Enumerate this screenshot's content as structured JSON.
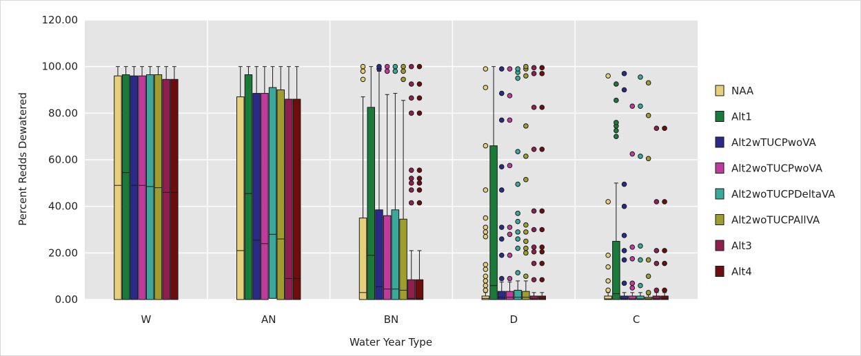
{
  "chart_data": {
    "type": "boxplot",
    "xlabel": "Water Year Type",
    "ylabel": "Percent Redds Dewatered",
    "ylim": [
      0,
      120
    ],
    "yticks": [
      "0.00",
      "20.00",
      "40.00",
      "60.00",
      "80.00",
      "100.00",
      "120.00"
    ],
    "ytick_values": [
      0,
      20,
      40,
      60,
      80,
      100,
      120
    ],
    "categories": [
      "W",
      "AN",
      "BN",
      "D",
      "C"
    ],
    "background": "#e5e5e5",
    "grid": true,
    "legend_position": "right",
    "series": [
      {
        "name": "NAA",
        "color": "#e5cf7a",
        "boxes": [
          {
            "q1": 0,
            "median": 49,
            "q3": 96,
            "whisker_low": 0,
            "whisker_high": 100,
            "outliers": []
          },
          {
            "q1": 0,
            "median": 21,
            "q3": 87,
            "whisker_low": 0,
            "whisker_high": 100,
            "outliers": []
          },
          {
            "q1": 0,
            "median": 3,
            "q3": 35,
            "whisker_low": 0,
            "whisker_high": 87,
            "outliers": [
              94.5,
              98,
              100
            ]
          },
          {
            "q1": 0,
            "median": 0.5,
            "q3": 1.5,
            "whisker_low": 0,
            "whisker_high": 3,
            "outliers": [
              4,
              6,
              8,
              10,
              13,
              15,
              27,
              29,
              31,
              35,
              47,
              66,
              91,
              99
            ]
          },
          {
            "q1": 0,
            "median": 0.3,
            "q3": 1.5,
            "whisker_low": 0,
            "whisker_high": 3,
            "outliers": [
              4,
              8,
              14,
              19,
              42,
              96
            ]
          }
        ]
      },
      {
        "name": "Alt1",
        "color": "#1a7a3a",
        "boxes": [
          {
            "q1": 0,
            "median": 54.5,
            "q3": 96.5,
            "whisker_low": 0,
            "whisker_high": 100,
            "outliers": []
          },
          {
            "q1": 0,
            "median": 45.5,
            "q3": 96.5,
            "whisker_low": 0,
            "whisker_high": 100,
            "outliers": []
          },
          {
            "q1": 0,
            "median": 19,
            "q3": 82.5,
            "whisker_low": 0,
            "whisker_high": 100,
            "outliers": []
          },
          {
            "q1": 0,
            "median": 6,
            "q3": 66,
            "whisker_low": 0,
            "whisker_high": 100,
            "outliers": []
          },
          {
            "q1": 0,
            "median": 2.5,
            "q3": 25,
            "whisker_low": 0,
            "whisker_high": 50,
            "outliers": [
              70,
              72.5,
              74.5,
              76,
              85.5,
              92.5
            ]
          }
        ]
      },
      {
        "name": "Alt2wTUCPwoVA",
        "color": "#2a2a8a",
        "boxes": [
          {
            "q1": 0,
            "median": 49,
            "q3": 96,
            "whisker_low": 0,
            "whisker_high": 100,
            "outliers": []
          },
          {
            "q1": 0,
            "median": 25.5,
            "q3": 88.5,
            "whisker_low": 0,
            "whisker_high": 100,
            "outliers": []
          },
          {
            "q1": 0,
            "median": 5.5,
            "q3": 38.5,
            "whisker_low": 0,
            "whisker_high": 98,
            "outliers": [
              99,
              100
            ]
          },
          {
            "q1": 0,
            "median": 1,
            "q3": 3.5,
            "whisker_low": 0,
            "whisker_high": 7.5,
            "outliers": [
              9,
              19,
              26,
              31,
              47,
              57,
              77,
              88.5,
              99
            ]
          },
          {
            "q1": 0,
            "median": 0.3,
            "q3": 1.5,
            "whisker_low": 0,
            "whisker_high": 3,
            "outliers": [
              7,
              17,
              21,
              27.5,
              40,
              49.5,
              90,
              97
            ]
          }
        ]
      },
      {
        "name": "Alt2woTUCPwoVA",
        "color": "#c03b9e",
        "boxes": [
          {
            "q1": 0,
            "median": 49,
            "q3": 96,
            "whisker_low": 0,
            "whisker_high": 100,
            "outliers": []
          },
          {
            "q1": 0,
            "median": 24,
            "q3": 88.5,
            "whisker_low": 0,
            "whisker_high": 100,
            "outliers": []
          },
          {
            "q1": 0,
            "median": 4.5,
            "q3": 36,
            "whisker_low": 0,
            "whisker_high": 88,
            "outliers": [
              98,
              100
            ]
          },
          {
            "q1": 0,
            "median": 1,
            "q3": 3.5,
            "whisker_low": 0,
            "whisker_high": 7.5,
            "outliers": [
              9,
              19,
              28,
              31,
              57.5,
              77,
              87.5,
              99
            ]
          },
          {
            "q1": 0,
            "median": 0.3,
            "q3": 1.5,
            "whisker_low": 0,
            "whisker_high": 3,
            "outliers": [
              5,
              7,
              17.5,
              22.5,
              62.5,
              83
            ]
          }
        ]
      },
      {
        "name": "Alt2woTUCPDeltaVA",
        "color": "#3aa89a",
        "boxes": [
          {
            "q1": 0,
            "median": 48.5,
            "q3": 96.5,
            "whisker_low": 0,
            "whisker_high": 100,
            "outliers": []
          },
          {
            "q1": 0.5,
            "median": 28,
            "q3": 91,
            "whisker_low": 0,
            "whisker_high": 100,
            "outliers": []
          },
          {
            "q1": 0,
            "median": 4.5,
            "q3": 38.5,
            "whisker_low": 0,
            "whisker_high": 88.5,
            "outliers": [
              98,
              100
            ]
          },
          {
            "q1": 0,
            "median": 1,
            "q3": 4,
            "whisker_low": 0,
            "whisker_high": 8,
            "outliers": [
              11.5,
              22,
              26,
              29,
              33.5,
              37,
              49.5,
              63.5,
              95,
              97.5,
              99
            ]
          },
          {
            "q1": 0,
            "median": 0.3,
            "q3": 1.5,
            "whisker_low": 0,
            "whisker_high": 3,
            "outliers": [
              6,
              17,
              23,
              61.5,
              83,
              95.5
            ]
          }
        ]
      },
      {
        "name": "Alt2woTUCPAllVA",
        "color": "#9e9e2e",
        "boxes": [
          {
            "q1": 0,
            "median": 48,
            "q3": 96.5,
            "whisker_low": 0,
            "whisker_high": 100,
            "outliers": []
          },
          {
            "q1": 0,
            "median": 26,
            "q3": 90,
            "whisker_low": 0,
            "whisker_high": 100,
            "outliers": []
          },
          {
            "q1": 0,
            "median": 4,
            "q3": 34.5,
            "whisker_low": 0,
            "whisker_high": 85.5,
            "outliers": [
              94.5,
              98,
              100
            ]
          },
          {
            "q1": 0,
            "median": 1,
            "q3": 3.5,
            "whisker_low": 0,
            "whisker_high": 8,
            "outliers": [
              10,
              20,
              22,
              25,
              29,
              32,
              51.5,
              61.5,
              74.5,
              96,
              99,
              100
            ]
          },
          {
            "q1": 0,
            "median": 0.3,
            "q3": 1,
            "whisker_low": 0,
            "whisker_high": 2,
            "outliers": [
              3,
              10,
              17,
              60.5,
              79,
              93
            ]
          }
        ]
      },
      {
        "name": "Alt3",
        "color": "#8e1f4e",
        "boxes": [
          {
            "q1": 0,
            "median": 46,
            "q3": 94.5,
            "whisker_low": 0,
            "whisker_high": 100,
            "outliers": []
          },
          {
            "q1": 0,
            "median": 9,
            "q3": 86,
            "whisker_low": 0,
            "whisker_high": 100,
            "outliers": []
          },
          {
            "q1": 0,
            "median": 0.5,
            "q3": 8.5,
            "whisker_low": 0,
            "whisker_high": 21,
            "outliers": [
              41.5,
              47,
              50,
              52,
              55.5,
              80,
              86.5,
              92.5,
              100
            ]
          },
          {
            "q1": 0,
            "median": 0.3,
            "q3": 1.5,
            "whisker_low": 0,
            "whisker_high": 3,
            "outliers": [
              8.5,
              15.5,
              20.5,
              22.5,
              30,
              38,
              64.5,
              82.5,
              97,
              99.5
            ]
          },
          {
            "q1": 0,
            "median": 0.3,
            "q3": 1.5,
            "whisker_low": 0,
            "whisker_high": 3,
            "outliers": [
              4,
              15.5,
              21,
              42,
              73.5
            ]
          }
        ]
      },
      {
        "name": "Alt4",
        "color": "#6e0d0d",
        "boxes": [
          {
            "q1": 0,
            "median": 46,
            "q3": 94.5,
            "whisker_low": 0,
            "whisker_high": 100,
            "outliers": []
          },
          {
            "q1": 0,
            "median": 9,
            "q3": 86,
            "whisker_low": 0,
            "whisker_high": 100,
            "outliers": []
          },
          {
            "q1": 0,
            "median": 0.5,
            "q3": 8.5,
            "whisker_low": 0,
            "whisker_high": 21,
            "outliers": [
              41.5,
              47,
              50,
              52,
              55.5,
              80,
              86.5,
              92.5,
              100
            ]
          },
          {
            "q1": 0,
            "median": 0.3,
            "q3": 1.5,
            "whisker_low": 0,
            "whisker_high": 3,
            "outliers": [
              8.5,
              15.5,
              20.5,
              22.5,
              30,
              38,
              64.5,
              82.5,
              97,
              99.5
            ]
          },
          {
            "q1": 0,
            "median": 0.3,
            "q3": 1.5,
            "whisker_low": 0,
            "whisker_high": 3,
            "outliers": [
              4,
              15.5,
              21,
              42,
              73.5
            ]
          }
        ]
      }
    ]
  }
}
